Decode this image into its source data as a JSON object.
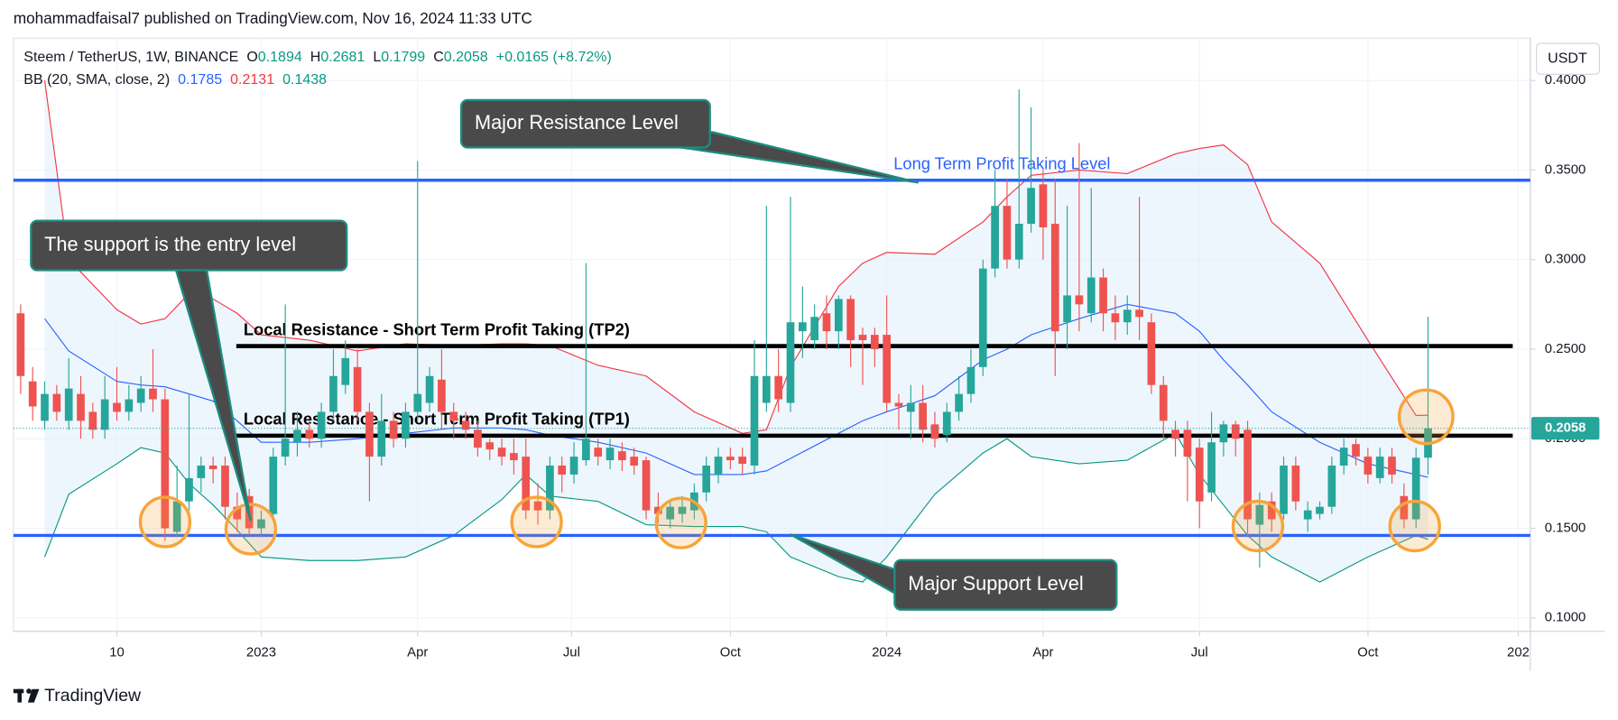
{
  "header": "mohammadfaisal7 published on TradingView.com, Nov 16, 2024 11:33 UTC",
  "currency": "USDT",
  "brand": "TradingView",
  "callouts": [
    "Major Resistance Level",
    "The support is the entry level",
    "Major Support Level"
  ],
  "chart_data": {
    "type": "candlestick",
    "legend": {
      "symbol": "Steem / TetherUS, 1W, BINANCE",
      "open_label": "O",
      "open": 0.1894,
      "high_label": "H",
      "high": 0.2681,
      "low_label": "L",
      "low": 0.1799,
      "close_label": "C",
      "close": 0.2058,
      "change": "+0.0165 (+8.72%)"
    },
    "indicator": {
      "name": "BB (20, SMA, close, 2)",
      "basis": 0.1785,
      "upper": 0.2131,
      "lower": 0.1438
    },
    "up_color": "#26a69a",
    "down_color": "#ef5350",
    "open": [
      0.27,
      0.232,
      0.21,
      0.225,
      0.21,
      0.225,
      0.215,
      0.205,
      0.22,
      0.215,
      0.22,
      0.228,
      0.222,
      0.148,
      0.165,
      0.178,
      0.185,
      0.185,
      0.162,
      0.168,
      0.15,
      0.158,
      0.19,
      0.198,
      0.205,
      0.2,
      0.215,
      0.23,
      0.24,
      0.215,
      0.19,
      0.21,
      0.2,
      0.215,
      0.22,
      0.233,
      0.215,
      0.21,
      0.205,
      0.198,
      0.195,
      0.192,
      0.19,
      0.165,
      0.16,
      0.185,
      0.18,
      0.188,
      0.195,
      0.188,
      0.193,
      0.19,
      0.188,
      0.162,
      0.155,
      0.158,
      0.16,
      0.17,
      0.18,
      0.19,
      0.19,
      0.185,
      0.22,
      0.235,
      0.22,
      0.26,
      0.255,
      0.27,
      0.26,
      0.278,
      0.258,
      0.258,
      0.258,
      0.22,
      0.215,
      0.22,
      0.208,
      0.202,
      0.215,
      0.225,
      0.24,
      0.295,
      0.33,
      0.3,
      0.32,
      0.342,
      0.32,
      0.265,
      0.28,
      0.27,
      0.29,
      0.27,
      0.265,
      0.272,
      0.265,
      0.23,
      0.205,
      0.205,
      0.195,
      0.17,
      0.198,
      0.208,
      0.205,
      0.152,
      0.165,
      0.158,
      0.185,
      0.155,
      0.158,
      0.162,
      0.185,
      0.197,
      0.19,
      0.178,
      0.19,
      0.168,
      0.155,
      0.1894
    ],
    "high": [
      0.275,
      0.24,
      0.232,
      0.23,
      0.245,
      0.235,
      0.22,
      0.235,
      0.24,
      0.23,
      0.235,
      0.25,
      0.228,
      0.185,
      0.225,
      0.19,
      0.19,
      0.19,
      0.17,
      0.172,
      0.16,
      0.195,
      0.275,
      0.215,
      0.21,
      0.22,
      0.25,
      0.255,
      0.25,
      0.22,
      0.225,
      0.215,
      0.22,
      0.355,
      0.24,
      0.25,
      0.22,
      0.215,
      0.21,
      0.2,
      0.2,
      0.2,
      0.2,
      0.175,
      0.19,
      0.19,
      0.198,
      0.298,
      0.2,
      0.2,
      0.198,
      0.195,
      0.19,
      0.17,
      0.165,
      0.168,
      0.175,
      0.19,
      0.195,
      0.195,
      0.195,
      0.255,
      0.33,
      0.25,
      0.335,
      0.285,
      0.275,
      0.28,
      0.28,
      0.28,
      0.262,
      0.262,
      0.28,
      0.225,
      0.23,
      0.23,
      0.215,
      0.22,
      0.235,
      0.25,
      0.3,
      0.35,
      0.345,
      0.395,
      0.385,
      0.35,
      0.345,
      0.33,
      0.365,
      0.34,
      0.295,
      0.28,
      0.28,
      0.335,
      0.27,
      0.235,
      0.21,
      0.21,
      0.2,
      0.215,
      0.21,
      0.21,
      0.21,
      0.17,
      0.17,
      0.19,
      0.19,
      0.165,
      0.165,
      0.19,
      0.2,
      0.2,
      0.195,
      0.195,
      0.195,
      0.175,
      0.195,
      0.2681
    ],
    "low": [
      0.225,
      0.21,
      0.205,
      0.21,
      0.205,
      0.2,
      0.2,
      0.2,
      0.21,
      0.21,
      0.215,
      0.215,
      0.143,
      0.145,
      0.16,
      0.17,
      0.175,
      0.155,
      0.148,
      0.146,
      0.145,
      0.155,
      0.185,
      0.19,
      0.195,
      0.195,
      0.21,
      0.225,
      0.21,
      0.165,
      0.185,
      0.195,
      0.195,
      0.21,
      0.215,
      0.205,
      0.2,
      0.2,
      0.19,
      0.188,
      0.185,
      0.18,
      0.155,
      0.152,
      0.155,
      0.17,
      0.175,
      0.185,
      0.185,
      0.183,
      0.182,
      0.18,
      0.155,
      0.153,
      0.15,
      0.153,
      0.155,
      0.165,
      0.175,
      0.183,
      0.18,
      0.18,
      0.215,
      0.215,
      0.215,
      0.245,
      0.25,
      0.25,
      0.25,
      0.24,
      0.23,
      0.24,
      0.215,
      0.205,
      0.2,
      0.198,
      0.195,
      0.198,
      0.21,
      0.22,
      0.235,
      0.29,
      0.295,
      0.295,
      0.315,
      0.3,
      0.235,
      0.25,
      0.26,
      0.265,
      0.26,
      0.255,
      0.258,
      0.255,
      0.225,
      0.2,
      0.19,
      0.165,
      0.15,
      0.165,
      0.19,
      0.19,
      0.145,
      0.128,
      0.148,
      0.155,
      0.16,
      0.148,
      0.155,
      0.158,
      0.18,
      0.185,
      0.175,
      0.175,
      0.175,
      0.15,
      0.15,
      0.1799
    ],
    "close": [
      0.235,
      0.218,
      0.225,
      0.215,
      0.228,
      0.21,
      0.205,
      0.222,
      0.215,
      0.222,
      0.228,
      0.222,
      0.15,
      0.165,
      0.178,
      0.185,
      0.183,
      0.162,
      0.155,
      0.15,
      0.155,
      0.19,
      0.2,
      0.205,
      0.2,
      0.215,
      0.235,
      0.245,
      0.215,
      0.19,
      0.21,
      0.2,
      0.215,
      0.225,
      0.235,
      0.215,
      0.21,
      0.205,
      0.195,
      0.194,
      0.19,
      0.188,
      0.16,
      0.16,
      0.185,
      0.18,
      0.19,
      0.2,
      0.19,
      0.195,
      0.188,
      0.185,
      0.16,
      0.158,
      0.162,
      0.162,
      0.17,
      0.185,
      0.19,
      0.188,
      0.186,
      0.235,
      0.235,
      0.222,
      0.265,
      0.265,
      0.268,
      0.26,
      0.278,
      0.255,
      0.255,
      0.25,
      0.22,
      0.218,
      0.22,
      0.205,
      0.2,
      0.215,
      0.225,
      0.24,
      0.295,
      0.33,
      0.3,
      0.32,
      0.34,
      0.318,
      0.26,
      0.28,
      0.275,
      0.29,
      0.27,
      0.265,
      0.272,
      0.268,
      0.23,
      0.21,
      0.2,
      0.19,
      0.165,
      0.198,
      0.208,
      0.2,
      0.155,
      0.163,
      0.155,
      0.185,
      0.165,
      0.16,
      0.162,
      0.185,
      0.195,
      0.19,
      0.18,
      0.19,
      0.18,
      0.155,
      0.1894,
      0.2058
    ],
    "bands": {
      "fill": "#e3f0fb",
      "x": [
        2,
        4,
        8,
        10,
        12,
        14,
        16,
        18,
        20,
        24,
        28,
        32,
        36,
        40,
        42,
        44,
        48,
        52,
        56,
        60,
        62,
        64,
        68,
        70,
        72,
        76,
        80,
        82,
        84,
        88,
        92,
        96,
        98,
        100,
        102,
        104,
        108,
        112,
        116,
        117
      ],
      "series": [
        {
          "color": "#f23645",
          "values": [
            0.4,
            0.3,
            0.272,
            0.264,
            0.267,
            0.281,
            0.278,
            0.27,
            0.258,
            0.255,
            0.249,
            0.253,
            0.252,
            0.253,
            0.253,
            0.252,
            0.241,
            0.235,
            0.215,
            0.203,
            0.205,
            0.24,
            0.285,
            0.298,
            0.304,
            0.303,
            0.321,
            0.335,
            0.347,
            0.35,
            0.348,
            0.359,
            0.362,
            0.364,
            0.353,
            0.321,
            0.298,
            0.255,
            0.213,
            0.2131
          ]
        },
        {
          "color": "#2962ff",
          "values": [
            0.267,
            0.249,
            0.232,
            0.23,
            0.229,
            0.225,
            0.221,
            0.21,
            0.198,
            0.198,
            0.2,
            0.203,
            0.206,
            0.206,
            0.205,
            0.202,
            0.198,
            0.192,
            0.18,
            0.18,
            0.182,
            0.189,
            0.203,
            0.21,
            0.215,
            0.224,
            0.244,
            0.25,
            0.258,
            0.267,
            0.275,
            0.27,
            0.26,
            0.244,
            0.23,
            0.215,
            0.198,
            0.186,
            0.18,
            0.1785
          ]
        },
        {
          "color": "#089981",
          "values": [
            0.134,
            0.169,
            0.186,
            0.195,
            0.192,
            0.175,
            0.163,
            0.149,
            0.134,
            0.132,
            0.132,
            0.134,
            0.146,
            0.166,
            0.18,
            0.168,
            0.165,
            0.152,
            0.151,
            0.151,
            0.148,
            0.134,
            0.123,
            0.12,
            0.134,
            0.169,
            0.192,
            0.2,
            0.19,
            0.186,
            0.188,
            0.203,
            0.18,
            0.163,
            0.146,
            0.134,
            0.12,
            0.134,
            0.146,
            0.1438
          ]
        }
      ]
    },
    "levels": [
      {
        "label": "Long Term Profit Taking Level",
        "value": 0.3443,
        "color": "#2962ff"
      },
      {
        "value": 0.146,
        "color": "#2962ff"
      },
      {
        "label": "Local Resistance - Short Term Profit Taking (TP2)",
        "value": 0.2517,
        "color": "#000000"
      },
      {
        "label": "Local Resistance - Short Term Profit Taking (TP1)",
        "value": 0.2017,
        "color": "#000000"
      }
    ],
    "xlim": [
      -0.6,
      125.5
    ],
    "xticks": [
      {
        "value": 8,
        "label": "10"
      },
      {
        "value": 20,
        "label": "2023"
      },
      {
        "value": 33,
        "label": "Apr"
      },
      {
        "value": 45.8,
        "label": "Jul"
      },
      {
        "value": 59,
        "label": "Oct"
      },
      {
        "value": 72,
        "label": "2024"
      },
      {
        "value": 85,
        "label": "Apr"
      },
      {
        "value": 98,
        "label": "Jul"
      },
      {
        "value": 112,
        "label": "Oct"
      },
      {
        "value": 124.5,
        "label": "202"
      }
    ],
    "ylim": [
      0.0925,
      0.4236
    ],
    "yticks": [
      {
        "value": 0.1,
        "label": "0.1000"
      },
      {
        "value": 0.15,
        "label": "0.1500"
      },
      {
        "value": 0.2,
        "label": "0.2000"
      },
      {
        "value": 0.25,
        "label": "0.2500"
      },
      {
        "value": 0.3,
        "label": "0.3000"
      },
      {
        "value": 0.35,
        "label": "0.3500"
      },
      {
        "value": 0.4,
        "label": "0.4000"
      }
    ],
    "grid": true
  }
}
